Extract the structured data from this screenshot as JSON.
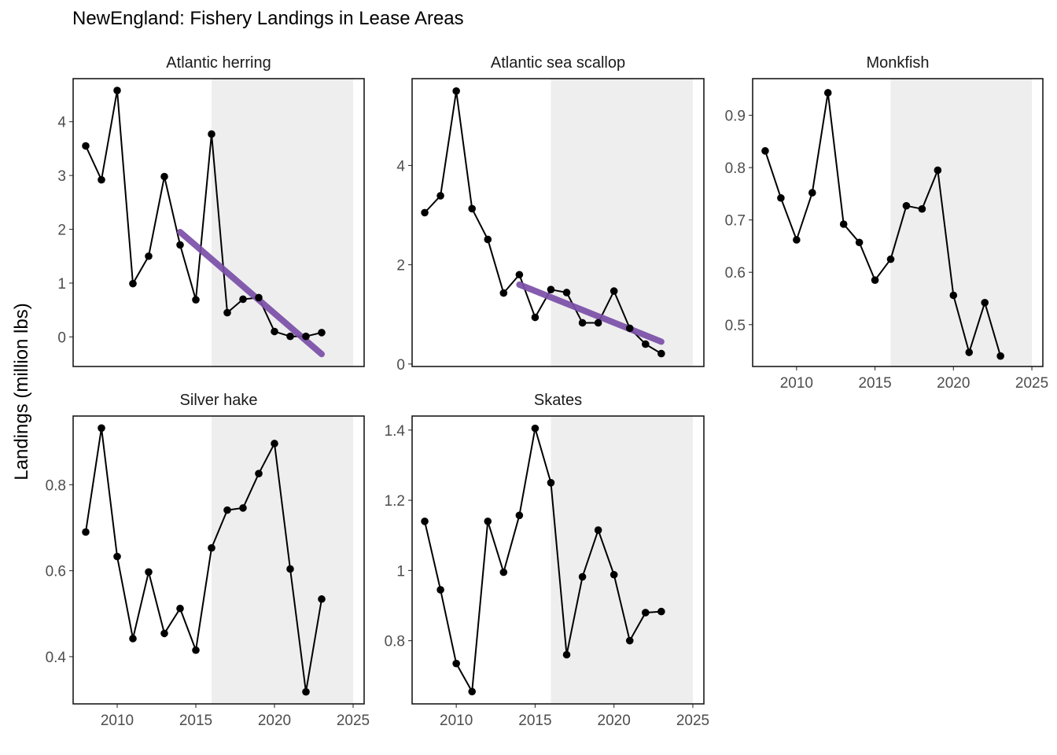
{
  "chart_data": {
    "type": "line",
    "title": "NewEngland: Fishery Landings in Lease Areas",
    "xlabel": "",
    "ylabel": "Landings (million lbs)",
    "xlim": [
      2007.2,
      2025.7
    ],
    "x_ticks": [
      2010,
      2015,
      2020,
      2025
    ],
    "shaded_region": {
      "x": [
        2016,
        2025
      ],
      "color": "#eeeeee"
    },
    "line_color": "#000000",
    "trend_color": "#7b4fa8",
    "grid": false,
    "panels": [
      {
        "name": "Atlantic herring",
        "ylim": [
          -0.55,
          4.8
        ],
        "y_ticks": [
          0,
          1,
          2,
          3,
          4
        ],
        "x": [
          2008,
          2009,
          2010,
          2011,
          2012,
          2013,
          2014,
          2015,
          2016,
          2017,
          2018,
          2019,
          2020,
          2021,
          2022,
          2023
        ],
        "values": [
          3.55,
          2.92,
          4.58,
          0.99,
          1.5,
          2.98,
          1.71,
          0.69,
          3.77,
          0.45,
          0.7,
          0.73,
          0.1,
          0.01,
          0.01,
          0.08
        ],
        "trend": {
          "x": [
            2014,
            2023
          ],
          "y": [
            1.95,
            -0.32
          ]
        },
        "show_x_axis": false
      },
      {
        "name": "Atlantic sea scallop",
        "ylim": [
          -0.05,
          5.75
        ],
        "y_ticks": [
          0,
          2,
          4
        ],
        "x": [
          2008,
          2009,
          2010,
          2011,
          2012,
          2013,
          2014,
          2015,
          2016,
          2017,
          2018,
          2019,
          2020,
          2021,
          2022,
          2023
        ],
        "values": [
          3.05,
          3.39,
          5.5,
          3.13,
          2.51,
          1.43,
          1.8,
          0.94,
          1.5,
          1.44,
          0.83,
          0.83,
          1.47,
          0.72,
          0.4,
          0.21
        ],
        "trend": {
          "x": [
            2014,
            2023
          ],
          "y": [
            1.6,
            0.45
          ]
        },
        "show_x_axis": false
      },
      {
        "name": "Monkfish",
        "ylim": [
          0.42,
          0.97
        ],
        "y_ticks": [
          0.5,
          0.6,
          0.7,
          0.8,
          0.9
        ],
        "x": [
          2008,
          2009,
          2010,
          2011,
          2012,
          2013,
          2014,
          2015,
          2016,
          2017,
          2018,
          2019,
          2020,
          2021,
          2022,
          2023
        ],
        "values": [
          0.832,
          0.742,
          0.662,
          0.752,
          0.943,
          0.692,
          0.657,
          0.585,
          0.625,
          0.727,
          0.721,
          0.795,
          0.556,
          0.447,
          0.542,
          0.44
        ],
        "show_x_axis": true
      },
      {
        "name": "Silver hake",
        "ylim": [
          0.29,
          0.96
        ],
        "y_ticks": [
          0.4,
          0.6,
          0.8
        ],
        "x": [
          2008,
          2009,
          2010,
          2011,
          2012,
          2013,
          2014,
          2015,
          2016,
          2017,
          2018,
          2019,
          2020,
          2021,
          2022,
          2023
        ],
        "values": [
          0.69,
          0.932,
          0.633,
          0.442,
          0.597,
          0.454,
          0.512,
          0.415,
          0.653,
          0.741,
          0.746,
          0.826,
          0.896,
          0.604,
          0.318,
          0.534
        ],
        "show_x_axis": true
      },
      {
        "name": "Skates",
        "ylim": [
          0.62,
          1.44
        ],
        "y_ticks": [
          0.8,
          1.0,
          1.2,
          1.4
        ],
        "x": [
          2008,
          2009,
          2010,
          2011,
          2012,
          2013,
          2014,
          2015,
          2016,
          2017,
          2018,
          2019,
          2020,
          2021,
          2022,
          2023
        ],
        "values": [
          1.14,
          0.945,
          0.735,
          0.655,
          1.14,
          0.995,
          1.157,
          1.405,
          1.25,
          0.76,
          0.982,
          1.115,
          0.988,
          0.8,
          0.88,
          0.883
        ],
        "show_x_axis": true
      }
    ]
  }
}
